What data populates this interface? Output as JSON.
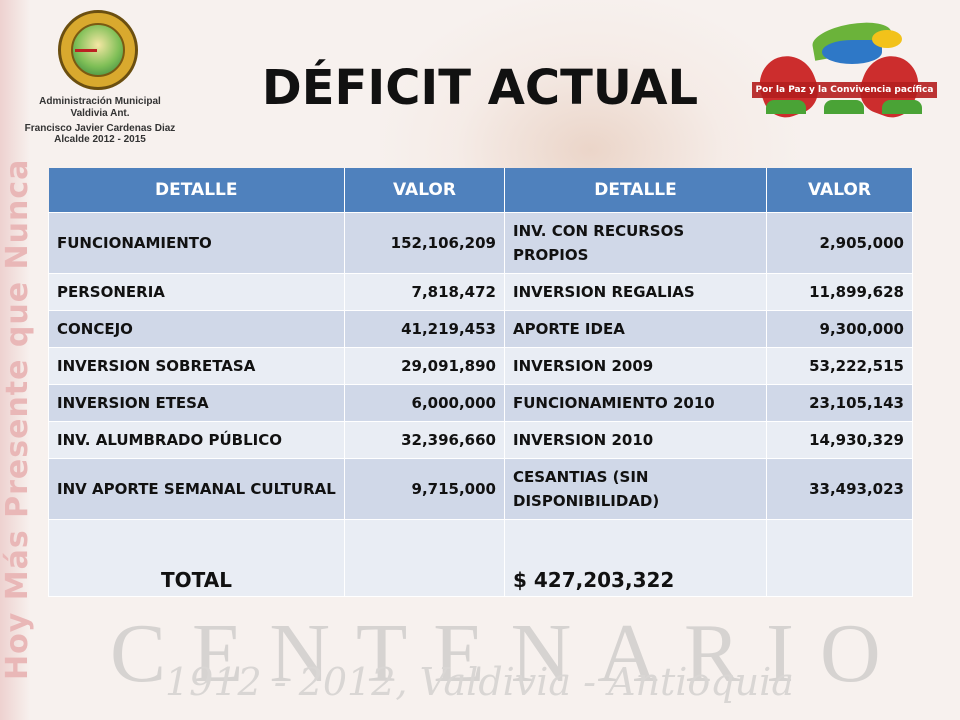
{
  "title": "DÉFICIT ACTUAL",
  "logo_left": {
    "line1": "Administración Municipal",
    "line2": "Valdivia Ant.",
    "line3": "Francisco Javier Cardenas Diaz",
    "line4": "Alcalde 2012 - 2015"
  },
  "logo_right": {
    "ribbon": "Por la Paz y la Convivencia pacífica"
  },
  "watermarks": {
    "centenario": "CENTENARIO",
    "dates": "1912 - 2012, Valdivia - Antioquia",
    "slogan": "Hoy Más Presente que Nunca"
  },
  "table": {
    "headers": [
      "DETALLE",
      "VALOR",
      "DETALLE",
      "VALOR"
    ],
    "rows": [
      {
        "d1": "FUNCIONAMIENTO",
        "v1": "152,106,209",
        "d2": "INV. CON RECURSOS PROPIOS",
        "v2": "2,905,000"
      },
      {
        "d1": "PERSONERIA",
        "v1": "7,818,472",
        "d2": "INVERSION REGALIAS",
        "v2": "11,899,628"
      },
      {
        "d1": "CONCEJO",
        "v1": "41,219,453",
        "d2": "APORTE IDEA",
        "v2": "9,300,000"
      },
      {
        "d1": "INVERSION SOBRETASA",
        "v1": "29,091,890",
        "d2": "INVERSION 2009",
        "v2": "53,222,515"
      },
      {
        "d1": "INVERSION ETESA",
        "v1": "6,000,000",
        "d2": "FUNCIONAMIENTO 2010",
        "v2": "23,105,143"
      },
      {
        "d1": "INV. ALUMBRADO PÚBLICO",
        "v1": "32,396,660",
        "d2": "INVERSION 2010",
        "v2": "14,930,329"
      },
      {
        "d1": "INV APORTE SEMANAL CULTURAL",
        "v1": "9,715,000",
        "d2": "CESANTIAS (SIN DISPONIBILIDAD)",
        "v2": "33,493,023"
      }
    ],
    "total_label": "TOTAL",
    "total_value": "$ 427,203,322"
  },
  "colors": {
    "header_blue": "#4f81bd",
    "row_dark": "#d0d8e8",
    "row_light": "#e9edf4"
  }
}
